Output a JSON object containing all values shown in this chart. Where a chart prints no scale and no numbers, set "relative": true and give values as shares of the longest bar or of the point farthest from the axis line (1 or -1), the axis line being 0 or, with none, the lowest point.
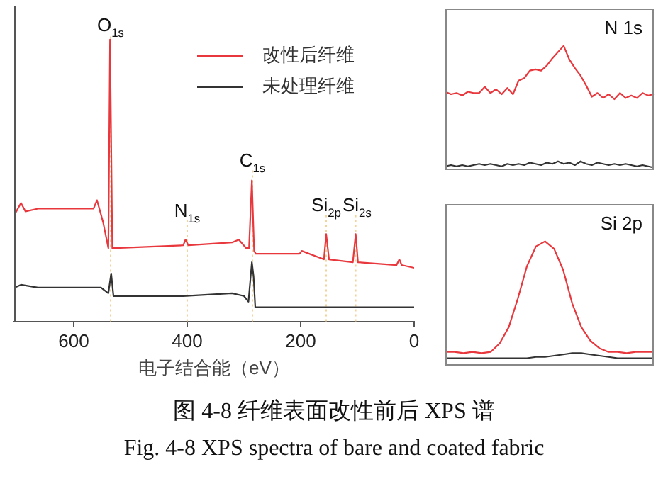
{
  "chart_data": [
    {
      "type": "line",
      "relative": true,
      "xlabel": "电子结合能（eV）",
      "xlim": [
        705,
        0
      ],
      "xticks": [
        600,
        400,
        200,
        0
      ],
      "grid": false,
      "marker": "none",
      "legend": "top right",
      "tick_labels": "x",
      "series": [
        {
          "name": "改性后纤维",
          "color": "#e8383d",
          "x": [
            704,
            693,
            685,
            663,
            578,
            565,
            559,
            548,
            539,
            536,
            532,
            526,
            407,
            403,
            398,
            321,
            309,
            296,
            291,
            286,
            282,
            279,
            202,
            198,
            159,
            155,
            150,
            108,
            103,
            99,
            31,
            26,
            22,
            0
          ],
          "values": [
            0.38,
            0.42,
            0.39,
            0.4,
            0.4,
            0.4,
            0.43,
            0.35,
            0.26,
            1,
            0.26,
            0.26,
            0.27,
            0.29,
            0.27,
            0.28,
            0.29,
            0.26,
            0.26,
            0.5,
            0.25,
            0.24,
            0.24,
            0.25,
            0.22,
            0.31,
            0.22,
            0.21,
            0.31,
            0.21,
            0.2,
            0.22,
            0.2,
            0.19
          ]
        },
        {
          "name": "未处理纤维",
          "color": "#333333",
          "x": [
            704,
            693,
            663,
            552,
            539,
            534,
            530,
            407,
            321,
            300,
            292,
            286,
            283,
            280,
            0
          ],
          "values": [
            0.12,
            0.13,
            0.12,
            0.12,
            0.1,
            0.17,
            0.09,
            0.09,
            0.1,
            0.09,
            0.07,
            0.21,
            0.16,
            0.05,
            0.05
          ]
        }
      ],
      "ref_lines": [
        {
          "axis": "x",
          "value": 535,
          "color": "#f2d49b",
          "line_style": "dotted"
        },
        {
          "axis": "x",
          "value": 400,
          "color": "#f2d49b",
          "line_style": "dotted"
        },
        {
          "axis": "x",
          "value": 285,
          "color": "#f2d49b",
          "line_style": "dotted"
        },
        {
          "axis": "x",
          "value": 155,
          "color": "#f2d49b",
          "line_style": "dotted"
        },
        {
          "axis": "x",
          "value": 103,
          "color": "#f2d49b",
          "line_style": "dotted"
        }
      ],
      "annotations": [
        {
          "text": "O$_{1s}$",
          "x": 535,
          "y": 1.01
        },
        {
          "text": "N$_{1s}$",
          "x": 400,
          "y": 0.35
        },
        {
          "text": "C$_{1s}$",
          "x": 285,
          "y": 0.53
        },
        {
          "text": "Si$_{2p}$",
          "x": 155,
          "y": 0.37
        },
        {
          "text": "Si$_{2s}$",
          "x": 103,
          "y": 0.37
        },
        "图 4-8 纤维表面改性前后 XPS 谱",
        "Fig. 4-8 XPS spectra of bare and coated fabric"
      ]
    },
    {
      "type": "line",
      "relative": true,
      "categories": [
        null,
        null,
        null,
        null,
        null,
        null,
        null,
        null,
        null,
        null,
        null,
        null,
        null,
        null,
        null,
        null,
        null,
        null,
        null,
        null,
        null,
        null,
        null,
        null,
        null,
        null,
        null,
        null,
        null,
        null,
        null,
        null,
        null,
        null,
        null,
        null,
        null,
        null
      ],
      "grid": false,
      "marker": "none",
      "tick_labels": false,
      "series": [
        {
          "color": "#e8383d",
          "values": [
            0.63,
            0.61,
            0.62,
            0.6,
            0.63,
            0.62,
            0.62,
            0.67,
            0.62,
            0.65,
            0.61,
            0.66,
            0.61,
            0.72,
            0.74,
            0.8,
            0.81,
            0.8,
            0.84,
            0.9,
            0.95,
            1,
            0.89,
            0.82,
            0.76,
            0.68,
            0.59,
            0.62,
            0.58,
            0.61,
            0.57,
            0.62,
            0.58,
            0.6,
            0.58,
            0.62,
            0.6,
            0.61
          ]
        },
        {
          "color": "#333333",
          "values": [
            0.03,
            0.04,
            0.03,
            0.04,
            0.03,
            0.04,
            0.05,
            0.04,
            0.05,
            0.04,
            0.03,
            0.05,
            0.04,
            0.05,
            0.04,
            0.06,
            0.05,
            0.04,
            0.06,
            0.05,
            0.07,
            0.05,
            0.06,
            0.04,
            0.07,
            0.05,
            0.04,
            0.06,
            0.05,
            0.04,
            0.05,
            0.04,
            0.05,
            0.04,
            0.03,
            0.04,
            0.03,
            0.02
          ]
        }
      ],
      "annotations": [
        "N 1s"
      ]
    },
    {
      "type": "line",
      "relative": true,
      "categories": [
        null,
        null,
        null,
        null,
        null,
        null,
        null,
        null,
        null,
        null,
        null,
        null,
        null,
        null,
        null,
        null,
        null,
        null,
        null,
        null,
        null,
        null,
        null,
        null
      ],
      "grid": false,
      "marker": "none",
      "tick_labels": false,
      "series": [
        {
          "color": "#e8383d",
          "values": [
            0.11,
            0.11,
            0.1,
            0.11,
            0.1,
            0.11,
            0.18,
            0.31,
            0.54,
            0.8,
            0.96,
            1,
            0.94,
            0.77,
            0.5,
            0.31,
            0.2,
            0.14,
            0.11,
            0.11,
            0.1,
            0.11,
            0.11,
            0.11
          ]
        },
        {
          "color": "#333333",
          "values": [
            0.06,
            0.06,
            0.06,
            0.06,
            0.06,
            0.06,
            0.06,
            0.06,
            0.06,
            0.06,
            0.07,
            0.07,
            0.08,
            0.09,
            0.1,
            0.1,
            0.09,
            0.08,
            0.07,
            0.06,
            0.06,
            0.06,
            0.06,
            0.06
          ]
        }
      ],
      "annotations": [
        "Si 2p"
      ]
    }
  ]
}
